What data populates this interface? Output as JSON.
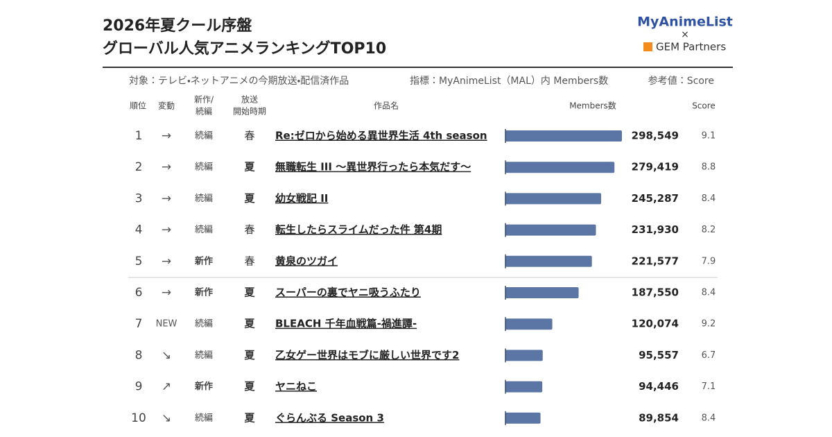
{
  "header": {
    "title_line1": "2026年夏クール序盤",
    "title_line2": "グローバル人気アニメランキングTOP10",
    "logo_top": "MyAnimeList",
    "logo_cross": "×",
    "logo_bottom": "GEM Partners"
  },
  "subtitle": {
    "target": "対象：テレビ・ネットアニメの今期放送・配信済作品",
    "metric": "指標：MyAnimeList（MAL）内 Members数",
    "reference": "参考値：Score"
  },
  "table": {
    "columns": {
      "rank": "順位",
      "change": "変動",
      "kind_line1": "新作/",
      "kind_line2": "続編",
      "season_line1": "放送",
      "season_line2": "開始時期",
      "title": "作品名",
      "members": "Members数",
      "score": "Score"
    },
    "bar_color": "#5b76a5",
    "rows": [
      {
        "rank": 1,
        "change": "→",
        "kind": "続編",
        "kind_bold": false,
        "season": "春",
        "season_bold": false,
        "title": "Re:ゼロから始める異世界生活 4th season",
        "members": {
          "value": 298549,
          "label": "298,549"
        },
        "score": 9.1
      },
      {
        "rank": 2,
        "change": "→",
        "kind": "続編",
        "kind_bold": false,
        "season": "夏",
        "season_bold": true,
        "title": "無職転生 III ～異世界行ったら本気だす～",
        "members": {
          "value": 279419,
          "label": "279,419"
        },
        "score": 8.8
      },
      {
        "rank": 3,
        "change": "→",
        "kind": "続編",
        "kind_bold": false,
        "season": "夏",
        "season_bold": true,
        "title": "幼女戦記 II",
        "members": {
          "value": 245287,
          "label": "245,287"
        },
        "score": 8.4
      },
      {
        "rank": 4,
        "change": "→",
        "kind": "続編",
        "kind_bold": false,
        "season": "春",
        "season_bold": false,
        "title": "転生したらスライムだった件 第4期",
        "members": {
          "value": 231930,
          "label": "231,930"
        },
        "score": 8.2
      },
      {
        "rank": 5,
        "change": "→",
        "kind": "新作",
        "kind_bold": true,
        "season": "春",
        "season_bold": false,
        "title": "黄泉のツガイ",
        "members": {
          "value": 221577,
          "label": "221,577"
        },
        "score": 7.9
      },
      {
        "rank": 6,
        "change": "→",
        "kind": "新作",
        "kind_bold": true,
        "season": "夏",
        "season_bold": true,
        "title": "スーパーの裏でヤニ吸うふたり",
        "members": {
          "value": 187550,
          "label": "187,550"
        },
        "score": 8.4
      },
      {
        "rank": 7,
        "change": "NEW",
        "kind": "続編",
        "kind_bold": false,
        "season": "夏",
        "season_bold": true,
        "title": "BLEACH 千年血戦篇-禍進譚-",
        "members": {
          "value": 120074,
          "label": "120,074"
        },
        "score": 9.2
      },
      {
        "rank": 8,
        "change": "↘",
        "kind": "続編",
        "kind_bold": false,
        "season": "夏",
        "season_bold": true,
        "title": "乙女ゲー世界はモブに厳しい世界です2",
        "members": {
          "value": 95557,
          "label": "95,557"
        },
        "score": 6.7
      },
      {
        "rank": 9,
        "change": "↗",
        "kind": "新作",
        "kind_bold": true,
        "season": "夏",
        "season_bold": true,
        "title": "ヤニねこ",
        "members": {
          "value": 94446,
          "label": "94,446"
        },
        "score": 7.1
      },
      {
        "rank": 10,
        "change": "↘",
        "kind": "続編",
        "kind_bold": false,
        "season": "夏",
        "season_bold": true,
        "title": "ぐらんぶる Season 3",
        "members": {
          "value": 89854,
          "label": "89,854"
        },
        "score": 8.4
      }
    ]
  }
}
